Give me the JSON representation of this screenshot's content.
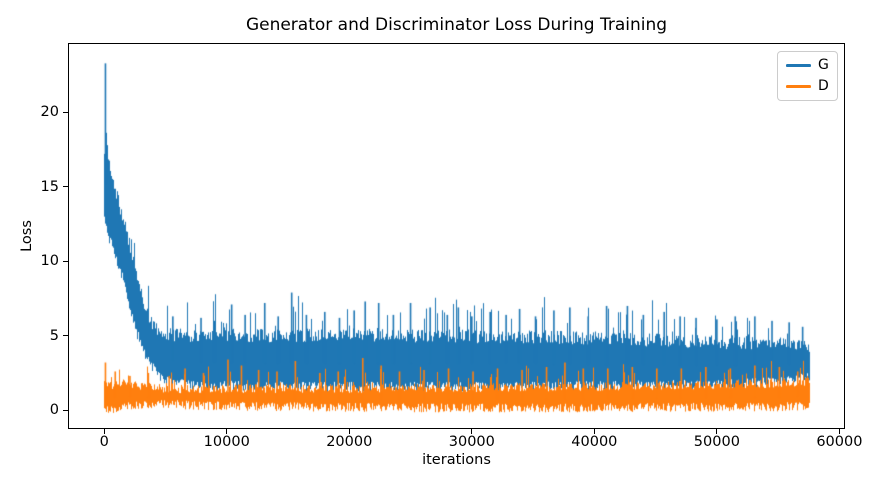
{
  "chart_data": {
    "type": "line",
    "title": "Generator and Discriminator Loss During Training",
    "xlabel": "iterations",
    "ylabel": "Loss",
    "xlim": [
      -2875,
      60375
    ],
    "ylim": [
      -1.2,
      24.6
    ],
    "grid": false,
    "background": "#ffffff",
    "x_axis": {
      "tick_values": [
        0,
        10000,
        20000,
        30000,
        40000,
        50000,
        60000
      ],
      "tick_labels": [
        "0",
        "10000",
        "20000",
        "30000",
        "40000",
        "50000",
        "60000"
      ]
    },
    "y_axis": {
      "tick_values": [
        0,
        5,
        10,
        15,
        20
      ],
      "tick_labels": [
        "0",
        "5",
        "10",
        "15",
        "20"
      ]
    },
    "legend": {
      "position": "upper right",
      "entries": [
        {
          "label": "G",
          "color": "#1f77b4"
        },
        {
          "label": "D",
          "color": "#ff7f0e"
        }
      ]
    },
    "series": [
      {
        "name": "G",
        "color": "#1f77b4",
        "style": "noisy-envelope",
        "x_start": 0,
        "x_end": 57500,
        "envelope": [
          [
            0,
            13.0,
            16.5
          ],
          [
            150,
            12.2,
            19.2
          ],
          [
            400,
            11.6,
            16.8
          ],
          [
            700,
            11.0,
            15.6
          ],
          [
            1000,
            10.2,
            14.6
          ],
          [
            1300,
            9.4,
            13.6
          ],
          [
            1600,
            8.6,
            12.8
          ],
          [
            1900,
            7.6,
            11.8
          ],
          [
            2200,
            6.6,
            10.6
          ],
          [
            2500,
            5.6,
            9.6
          ],
          [
            2800,
            4.9,
            8.6
          ],
          [
            3100,
            4.3,
            7.6
          ],
          [
            3400,
            3.7,
            6.8
          ],
          [
            3800,
            3.0,
            6.0
          ],
          [
            4300,
            2.5,
            5.4
          ],
          [
            5000,
            2.0,
            5.1
          ],
          [
            7000,
            1.7,
            5.0
          ],
          [
            12000,
            1.6,
            5.0
          ],
          [
            20000,
            1.55,
            5.05
          ],
          [
            30000,
            1.55,
            4.95
          ],
          [
            40000,
            1.6,
            4.85
          ],
          [
            48000,
            1.7,
            4.6
          ],
          [
            53000,
            1.8,
            4.5
          ],
          [
            56500,
            2.0,
            4.4
          ],
          [
            57500,
            2.3,
            4.2
          ]
        ],
        "noise": {
          "seed": 42,
          "spike_prob": 0.2,
          "spike_amp": 2.6,
          "top_jitter": 0.9,
          "bottom_jitter": 0.35
        },
        "spikes": [
          [
            100,
            23.3
          ],
          [
            5600,
            6.3
          ],
          [
            7900,
            6.2
          ],
          [
            9000,
            6.0
          ],
          [
            10400,
            7.1
          ],
          [
            11500,
            6.4
          ],
          [
            13100,
            7.2
          ],
          [
            14200,
            6.3
          ],
          [
            15300,
            7.9
          ],
          [
            16500,
            6.4
          ],
          [
            18000,
            6.6
          ],
          [
            19200,
            6.2
          ],
          [
            20400,
            6.7
          ],
          [
            21300,
            7.3
          ],
          [
            22400,
            7.2
          ],
          [
            23600,
            6.4
          ],
          [
            25000,
            7.2
          ],
          [
            26600,
            6.9
          ],
          [
            28000,
            6.4
          ],
          [
            28900,
            6.9
          ],
          [
            30000,
            6.3
          ],
          [
            31500,
            6.6
          ],
          [
            32800,
            6.4
          ],
          [
            33900,
            6.8
          ],
          [
            35200,
            6.3
          ],
          [
            36700,
            6.7
          ],
          [
            38000,
            6.9
          ],
          [
            39500,
            6.3
          ],
          [
            41000,
            7.0
          ],
          [
            42700,
            7.0
          ],
          [
            44000,
            6.4
          ],
          [
            45700,
            6.6
          ],
          [
            47000,
            6.3
          ],
          [
            48300,
            6.2
          ],
          [
            50000,
            6.1
          ],
          [
            51500,
            6.3
          ],
          [
            53100,
            6.3
          ],
          [
            54500,
            6.0
          ],
          [
            55900,
            5.9
          ],
          [
            57000,
            5.6
          ]
        ]
      },
      {
        "name": "D",
        "color": "#ff7f0e",
        "style": "noisy-envelope",
        "x_start": 0,
        "x_end": 57500,
        "envelope": [
          [
            0,
            0.05,
            1.7
          ],
          [
            300,
            0.07,
            1.8
          ],
          [
            700,
            0.1,
            1.7
          ],
          [
            1200,
            0.18,
            1.9
          ],
          [
            1800,
            0.25,
            1.8
          ],
          [
            2500,
            0.32,
            1.7
          ],
          [
            3500,
            0.4,
            1.55
          ],
          [
            5000,
            0.4,
            1.45
          ],
          [
            7000,
            0.33,
            1.4
          ],
          [
            10000,
            0.28,
            1.45
          ],
          [
            15000,
            0.22,
            1.45
          ],
          [
            20000,
            0.18,
            1.45
          ],
          [
            27000,
            0.15,
            1.5
          ],
          [
            35000,
            0.15,
            1.55
          ],
          [
            42000,
            0.17,
            1.6
          ],
          [
            50000,
            0.2,
            1.7
          ],
          [
            55000,
            0.22,
            1.8
          ],
          [
            57500,
            0.25,
            1.9
          ]
        ],
        "noise": {
          "seed": 1337,
          "spike_prob": 0.2,
          "spike_amp": 1.5,
          "top_jitter": 0.6,
          "bottom_jitter": 0.3
        },
        "spikes": [
          [
            100,
            3.2
          ],
          [
            900,
            2.6
          ],
          [
            2100,
            2.3
          ],
          [
            3600,
            2.5
          ],
          [
            5300,
            2.3
          ],
          [
            6600,
            2.8
          ],
          [
            8100,
            2.5
          ],
          [
            10100,
            3.4
          ],
          [
            11200,
            3.0
          ],
          [
            12600,
            2.7
          ],
          [
            14100,
            2.6
          ],
          [
            15600,
            3.3
          ],
          [
            17600,
            2.5
          ],
          [
            19100,
            2.6
          ],
          [
            21100,
            3.5
          ],
          [
            22600,
            3.0
          ],
          [
            24100,
            2.6
          ],
          [
            26100,
            2.7
          ],
          [
            28100,
            2.8
          ],
          [
            30100,
            2.6
          ],
          [
            32100,
            2.8
          ],
          [
            34100,
            2.7
          ],
          [
            36100,
            2.9
          ],
          [
            37600,
            3.2
          ],
          [
            39100,
            2.8
          ],
          [
            41100,
            2.8
          ],
          [
            43100,
            2.9
          ],
          [
            45100,
            2.8
          ],
          [
            47100,
            2.8
          ],
          [
            49100,
            2.9
          ],
          [
            51100,
            2.8
          ],
          [
            53100,
            3.0
          ],
          [
            55100,
            2.9
          ],
          [
            56600,
            2.6
          ]
        ]
      }
    ]
  }
}
